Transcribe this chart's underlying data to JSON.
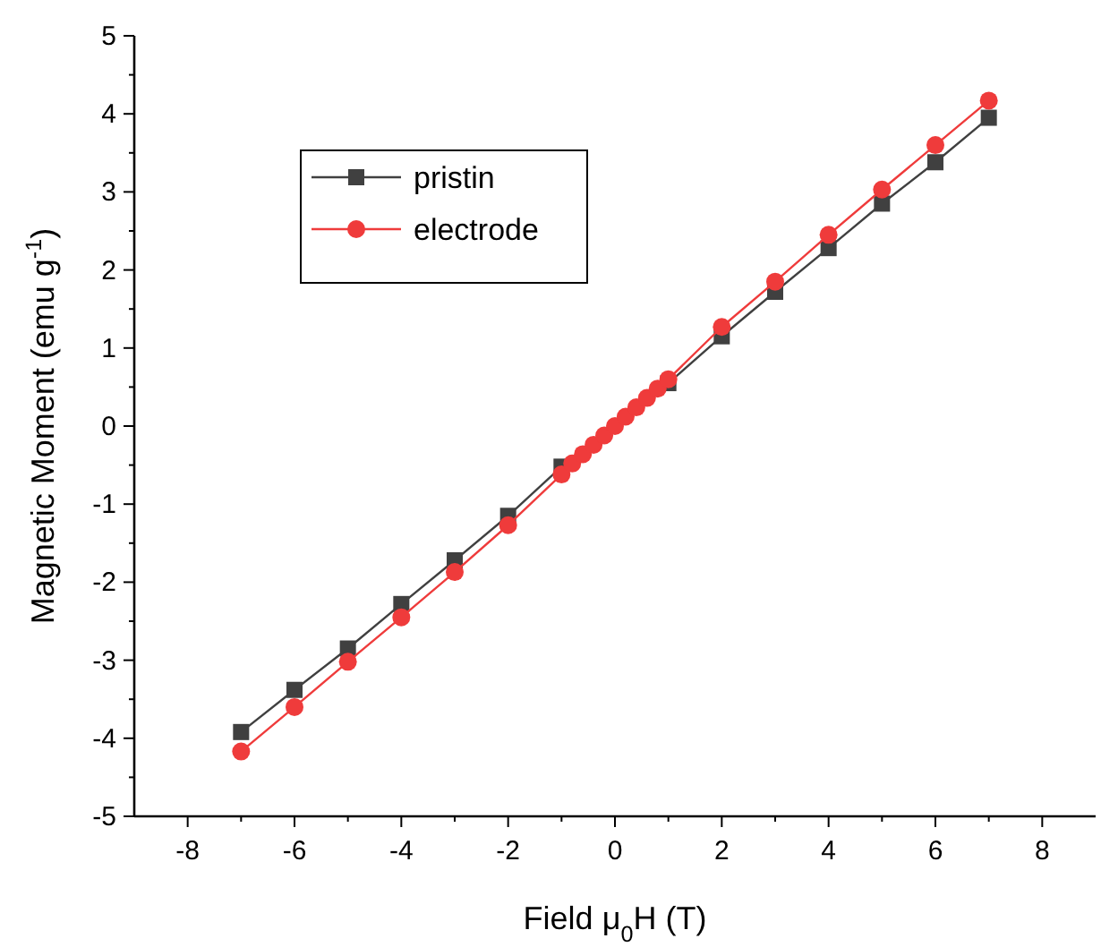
{
  "chart_data": {
    "type": "line",
    "xlabel": "Field μ$_{0}$H (T)",
    "ylabel": "Magnetic Moment (emu g$^{-1}$)",
    "xlim": [
      -9,
      9
    ],
    "xticks": [
      -8,
      -6,
      -4,
      -2,
      0,
      2,
      4,
      6,
      8
    ],
    "ylim": [
      -5,
      5
    ],
    "yticks": [
      -5,
      -4,
      -3,
      -2,
      -1,
      0,
      1,
      2,
      3,
      4,
      5
    ],
    "legend": "top left",
    "grid": false,
    "series": [
      {
        "name": "pristin",
        "color": "#404040",
        "marker": "square",
        "x": [
          -7,
          -6,
          -5,
          -4,
          -3,
          -2,
          -1,
          1,
          2,
          3,
          4,
          5,
          6,
          7
        ],
        "values": [
          -3.92,
          -3.38,
          -2.85,
          -2.28,
          -1.72,
          -1.15,
          -0.52,
          0.55,
          1.15,
          1.72,
          2.28,
          2.85,
          3.38,
          3.95
        ]
      },
      {
        "name": "electrode",
        "color": "#ef3b3b",
        "marker": "circle",
        "x": [
          -7,
          -6,
          -5,
          -4,
          -3,
          -2,
          -1,
          -0.8,
          -0.6,
          -0.4,
          -0.2,
          0,
          0.2,
          0.4,
          0.6,
          0.8,
          1,
          2,
          3,
          4,
          5,
          6,
          7
        ],
        "values": [
          -4.17,
          -3.6,
          -3.02,
          -2.45,
          -1.87,
          -1.27,
          -0.62,
          -0.48,
          -0.36,
          -0.24,
          -0.12,
          0,
          0.12,
          0.24,
          0.36,
          0.48,
          0.6,
          1.27,
          1.85,
          2.45,
          3.03,
          3.6,
          4.17
        ]
      }
    ]
  }
}
